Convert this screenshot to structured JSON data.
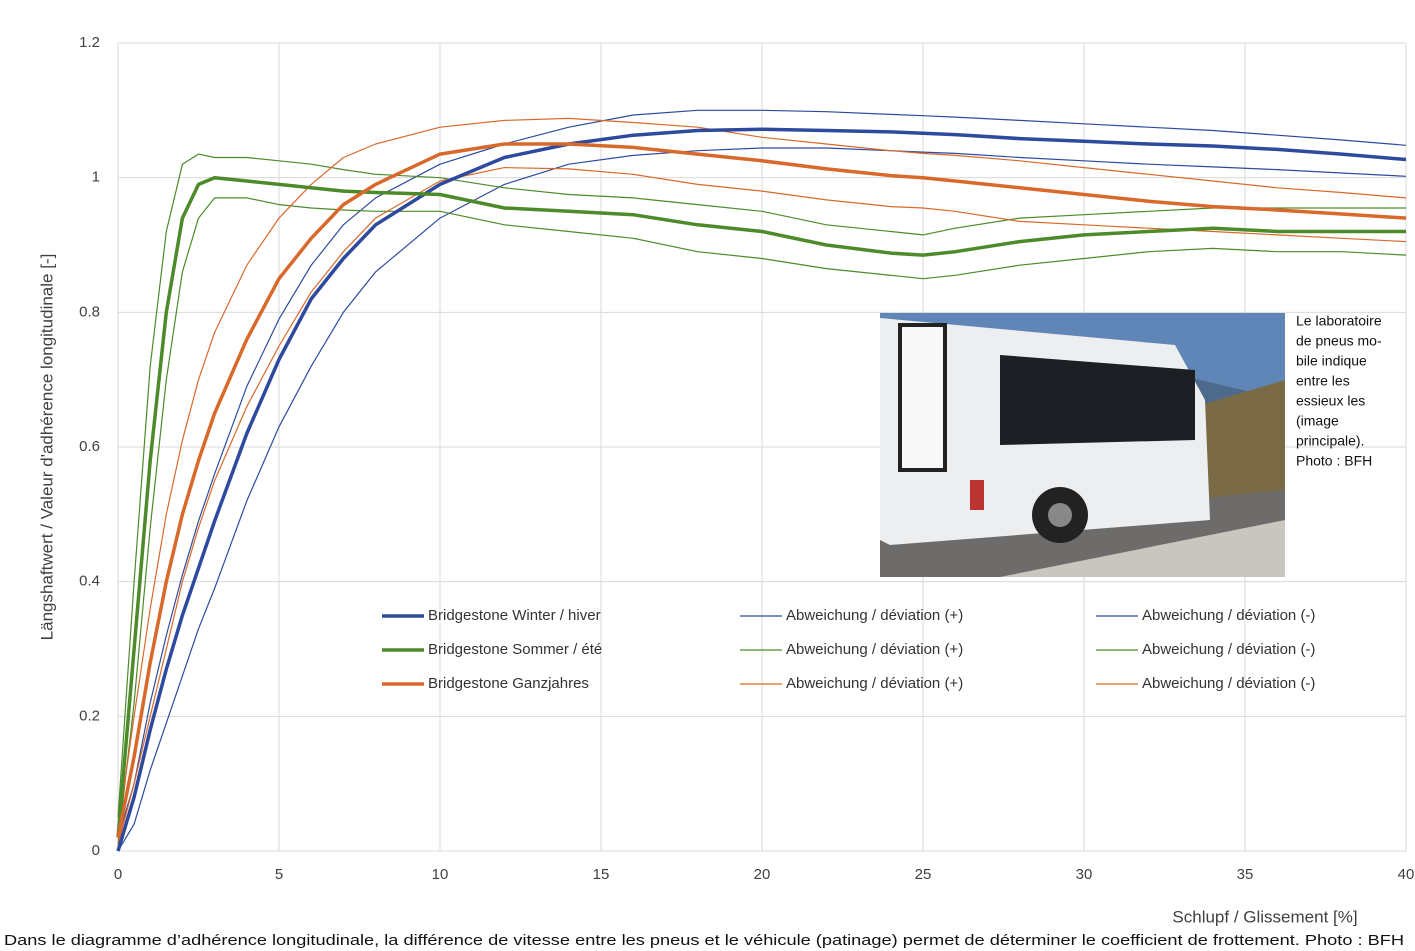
{
  "chart_data": {
    "type": "line",
    "xlabel": "Schlupf / Glissement [%]",
    "ylabel": "Längshaftwert / Valeur d'adhérence longitudinale [-]",
    "xlim": [
      0,
      40
    ],
    "ylim": [
      0,
      1.2
    ],
    "xticks": [
      0,
      5,
      10,
      15,
      20,
      25,
      30,
      35,
      40
    ],
    "yticks": [
      0,
      0.2,
      0.4,
      0.6,
      0.8,
      1,
      1.2
    ],
    "grid": true,
    "x": [
      0,
      0.5,
      1,
      1.5,
      2,
      2.5,
      3,
      4,
      5,
      6,
      7,
      8,
      10,
      12,
      14,
      16,
      18,
      20,
      22,
      24,
      25,
      26,
      28,
      30,
      32,
      34,
      36,
      38,
      40
    ],
    "series": [
      {
        "name": "Bridgestone Winter / hiver",
        "color": "#2e4a9e",
        "line_width": 3.5,
        "values": [
          0,
          0.08,
          0.18,
          0.27,
          0.35,
          0.42,
          0.49,
          0.62,
          0.73,
          0.82,
          0.88,
          0.93,
          0.99,
          1.03,
          1.05,
          1.063,
          1.07,
          1.072,
          1.07,
          1.068,
          1.066,
          1.064,
          1.058,
          1.054,
          1.05,
          1.047,
          1.042,
          1.035,
          1.027
        ]
      },
      {
        "name": "Abweichung / déviation (+)",
        "color": "#2e4a9e",
        "line_width": 1.2,
        "values": [
          0.02,
          0.1,
          0.22,
          0.32,
          0.41,
          0.49,
          0.56,
          0.69,
          0.79,
          0.87,
          0.93,
          0.97,
          1.02,
          1.05,
          1.075,
          1.093,
          1.1,
          1.1,
          1.098,
          1.094,
          1.092,
          1.09,
          1.085,
          1.08,
          1.075,
          1.07,
          1.063,
          1.056,
          1.048
        ]
      },
      {
        "name": "Abweichung / déviation (-)",
        "color": "#2e4a9e",
        "line_width": 1.2,
        "values": [
          0,
          0.04,
          0.12,
          0.19,
          0.26,
          0.33,
          0.39,
          0.52,
          0.63,
          0.72,
          0.8,
          0.86,
          0.94,
          0.99,
          1.02,
          1.033,
          1.04,
          1.044,
          1.044,
          1.04,
          1.038,
          1.036,
          1.03,
          1.025,
          1.02,
          1.016,
          1.012,
          1.007,
          1.002
        ]
      },
      {
        "name": "Bridgestone Sommer / été",
        "color": "#4d8a2a",
        "line_width": 3.5,
        "values": [
          0.02,
          0.3,
          0.58,
          0.8,
          0.94,
          0.99,
          1.0,
          0.995,
          0.99,
          0.985,
          0.98,
          0.978,
          0.975,
          0.955,
          0.95,
          0.945,
          0.93,
          0.92,
          0.9,
          0.888,
          0.885,
          0.89,
          0.905,
          0.915,
          0.92,
          0.925,
          0.92,
          0.92,
          0.92
        ]
      },
      {
        "name": "Abweichung / déviation (+)",
        "color": "#4d8a2a",
        "line_width": 1.2,
        "values": [
          0.05,
          0.4,
          0.72,
          0.92,
          1.02,
          1.035,
          1.03,
          1.03,
          1.025,
          1.02,
          1.012,
          1.005,
          1.0,
          0.985,
          0.975,
          0.97,
          0.96,
          0.95,
          0.93,
          0.92,
          0.915,
          0.925,
          0.94,
          0.945,
          0.95,
          0.955,
          0.955,
          0.955,
          0.955
        ]
      },
      {
        "name": "Abweichung / déviation (-)",
        "color": "#4d8a2a",
        "line_width": 1.2,
        "values": [
          0.01,
          0.22,
          0.48,
          0.7,
          0.86,
          0.94,
          0.97,
          0.97,
          0.96,
          0.955,
          0.952,
          0.95,
          0.95,
          0.93,
          0.92,
          0.91,
          0.89,
          0.88,
          0.865,
          0.855,
          0.85,
          0.855,
          0.87,
          0.88,
          0.89,
          0.895,
          0.89,
          0.89,
          0.885
        ]
      },
      {
        "name": "Bridgestone Ganzjahres",
        "color": "#d9692a",
        "line_width": 3.5,
        "values": [
          0.02,
          0.14,
          0.28,
          0.4,
          0.5,
          0.58,
          0.65,
          0.76,
          0.85,
          0.91,
          0.96,
          0.99,
          1.035,
          1.05,
          1.05,
          1.045,
          1.035,
          1.025,
          1.013,
          1.003,
          1.0,
          0.995,
          0.985,
          0.975,
          0.965,
          0.957,
          0.952,
          0.946,
          0.94
        ]
      },
      {
        "name": "Abweichung / déviation (+)",
        "color": "#d9692a",
        "line_width": 1.2,
        "values": [
          0.03,
          0.2,
          0.36,
          0.5,
          0.61,
          0.7,
          0.77,
          0.87,
          0.94,
          0.99,
          1.03,
          1.05,
          1.075,
          1.085,
          1.088,
          1.082,
          1.075,
          1.06,
          1.05,
          1.04,
          1.036,
          1.033,
          1.025,
          1.015,
          1.005,
          0.995,
          0.985,
          0.978,
          0.97
        ]
      },
      {
        "name": "Abweichung / déviation (-)",
        "color": "#d9692a",
        "line_width": 1.2,
        "values": [
          0.01,
          0.1,
          0.2,
          0.3,
          0.4,
          0.48,
          0.55,
          0.66,
          0.75,
          0.83,
          0.89,
          0.94,
          0.995,
          1.015,
          1.013,
          1.005,
          0.99,
          0.98,
          0.967,
          0.957,
          0.955,
          0.95,
          0.935,
          0.93,
          0.925,
          0.92,
          0.915,
          0.91,
          0.905
        ]
      }
    ]
  },
  "photo_caption": [
    "Le laboratoire",
    "de pneus mo-",
    "bile indique",
    "entre les",
    "essieux les",
    "(image",
    "principale).",
    "Photo : BFH"
  ],
  "caption": "Dans le diagramme d’adhérence longitudinale, la différence de vitesse entre les pneus et le véhicule (patinage) permet de déterminer le coefficient de frottement. Photo : BFH"
}
